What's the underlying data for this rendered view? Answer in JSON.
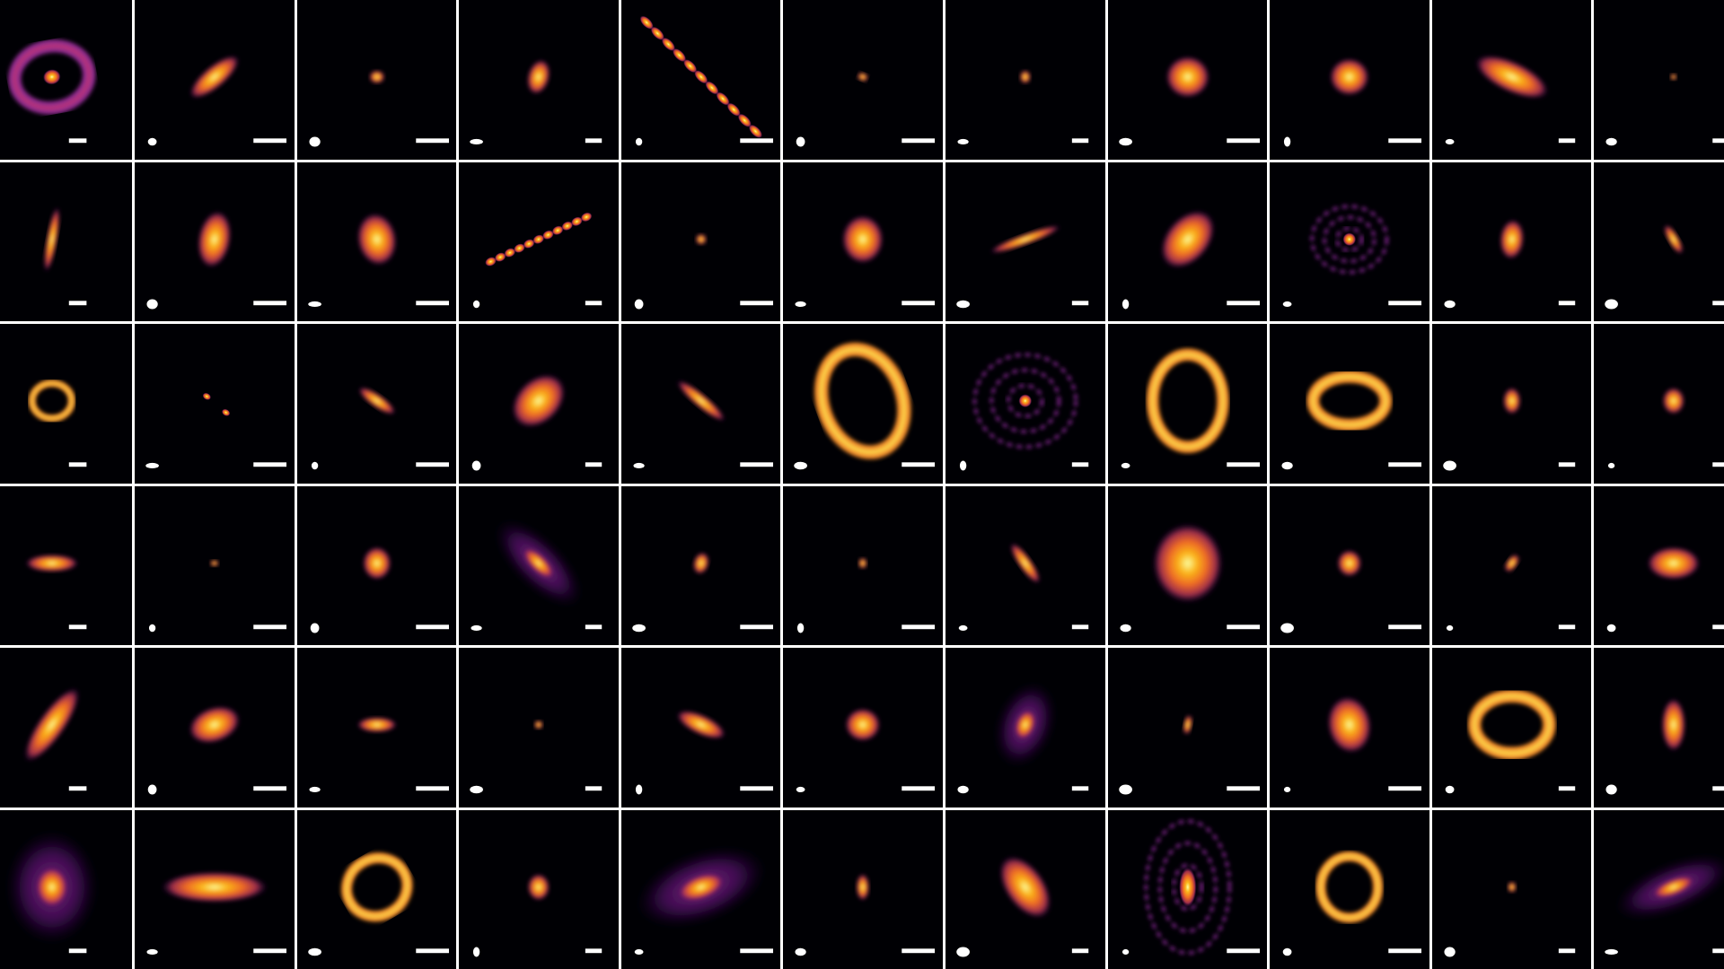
{
  "figure": {
    "rows": 6,
    "columns": 11,
    "background": "#000004",
    "grid_line_color": "#ffffff",
    "colormap": [
      "#000004",
      "#57106e",
      "#bc3754",
      "#ed6925",
      "#fbb61a",
      "#fcffa4"
    ],
    "beam_color": "#ffffff",
    "scale_bar_color": "#ffffff"
  }
}
